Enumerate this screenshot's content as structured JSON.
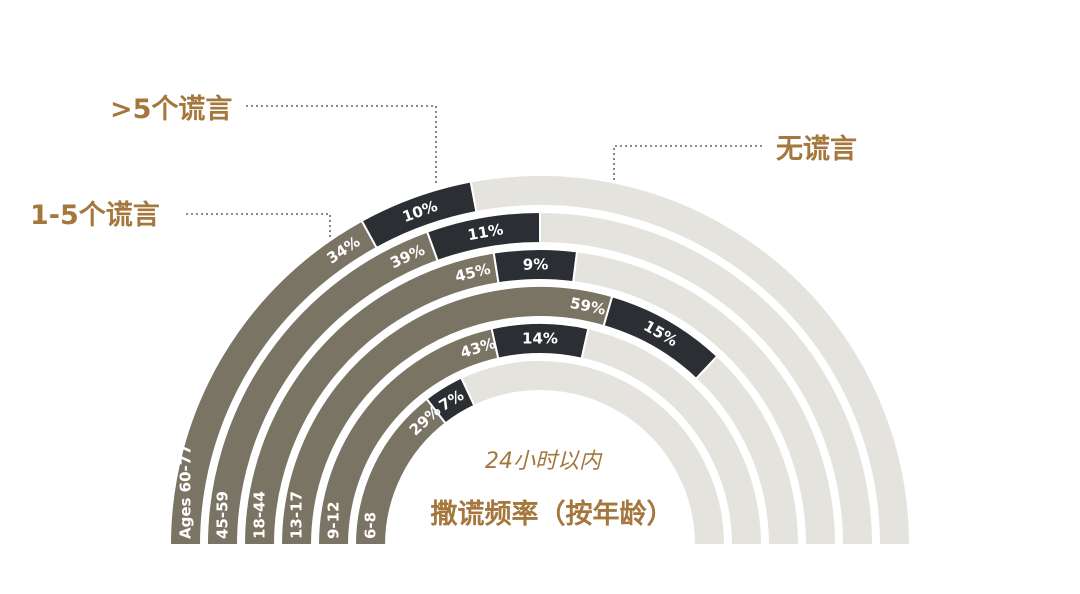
{
  "chart_data": {
    "type": "stacked-semicircle",
    "title": "撒谎频率（按年龄）",
    "subtitle": "24小时以内",
    "legend": [
      {
        "key": "many",
        "label": ">5个谎言"
      },
      {
        "key": "few",
        "label": "1-5个谎言"
      },
      {
        "key": "none",
        "label": "无谎言"
      }
    ],
    "series_colors": {
      "few": "#7a7465",
      "many": "#2b2f33",
      "none": "#e4e3de"
    },
    "label_colors": {
      "few": "#ffffff",
      "many": "#ffffff"
    },
    "text_color": "#a4773d",
    "leader_color": "#666666",
    "rings": [
      {
        "age": "Ages 60-77",
        "few": 34,
        "few_label": "34%",
        "many": 10,
        "many_label": "10%",
        "none": 56
      },
      {
        "age": "45-59",
        "few": 39,
        "few_label": "39%",
        "many": 11,
        "many_label": "11%",
        "none": 50
      },
      {
        "age": "18-44",
        "few": 45,
        "few_label": "45%",
        "many": 9,
        "many_label": "9%",
        "none": 46
      },
      {
        "age": "13-17",
        "few": 59,
        "few_label": "59%",
        "many": 15,
        "many_label": "15%",
        "none": 26
      },
      {
        "age": "9-12",
        "few": 43,
        "few_label": "43%",
        "many": 14,
        "many_label": "14%",
        "none": 43
      },
      {
        "age": "6-8",
        "few": 29,
        "few_label": "29%",
        "many": 7,
        "many_label": "7%",
        "none": 64
      }
    ]
  }
}
